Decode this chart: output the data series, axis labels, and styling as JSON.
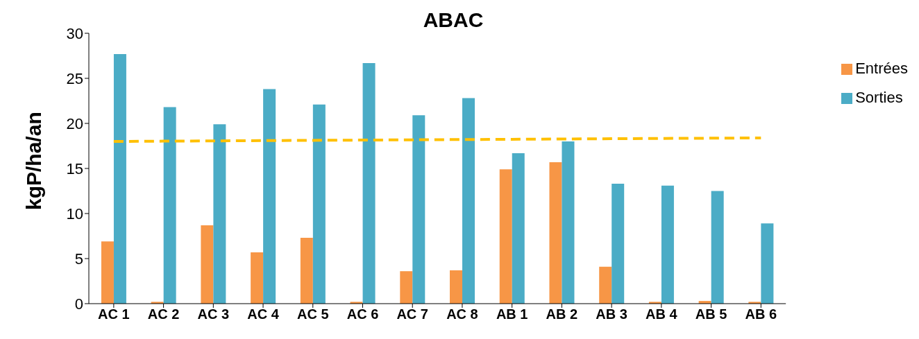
{
  "chart_data": {
    "type": "bar",
    "title": "ABAC",
    "ylabel": "kgP/ha/an",
    "categories": [
      "AC 1",
      "AC 2",
      "AC 3",
      "AC 4",
      "AC 5",
      "AC 6",
      "AC 7",
      "AC 8",
      "AB 1",
      "AB 2",
      "AB 3",
      "AB 4",
      "AB 5",
      "AB 6"
    ],
    "series": [
      {
        "name": "Entrées",
        "color": "#f79646",
        "values": [
          6.9,
          0.2,
          8.7,
          5.7,
          7.3,
          0.2,
          3.6,
          3.7,
          14.9,
          15.7,
          4.1,
          0.2,
          0.3,
          0.2
        ]
      },
      {
        "name": "Sorties",
        "color": "#4bacc6",
        "values": [
          27.7,
          21.8,
          19.9,
          23.8,
          22.1,
          26.7,
          20.9,
          22.8,
          16.7,
          18.0,
          13.3,
          13.1,
          12.5,
          8.9
        ]
      },
      {
        "type": "line",
        "color": "#ffc000",
        "line_style": "dashed",
        "marker": "none",
        "values": [
          18.0,
          18.03,
          18.06,
          18.09,
          18.12,
          18.15,
          18.18,
          18.21,
          18.24,
          18.27,
          18.3,
          18.33,
          18.36,
          18.39
        ]
      }
    ],
    "ylim": [
      0,
      30
    ],
    "yticks": [
      0,
      5,
      10,
      15,
      20,
      25,
      30
    ],
    "grid": false,
    "legend": "top right"
  }
}
